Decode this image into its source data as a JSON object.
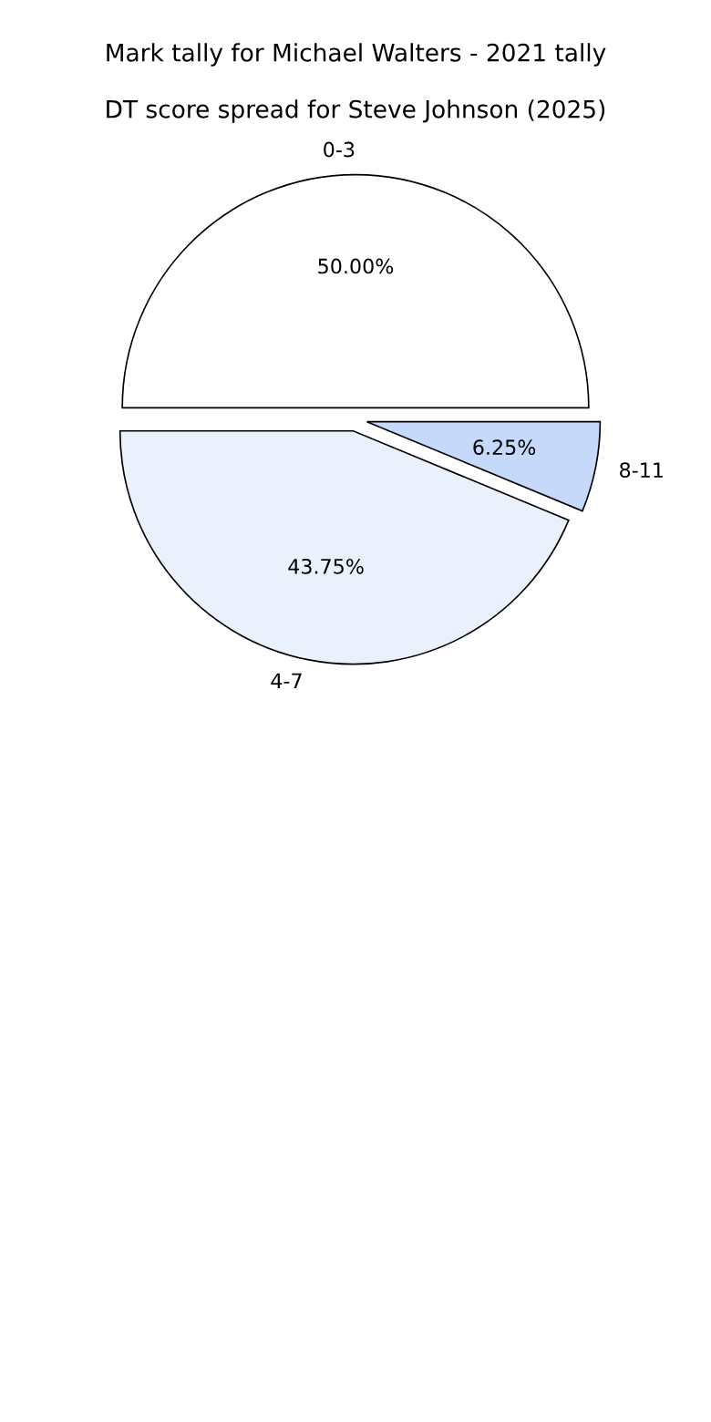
{
  "chart_data": {
    "type": "pie",
    "title": "Mark tally for Michael Walters - 2021 tally",
    "subtitle": "DT score spread for Steve Johnson (2025)",
    "categories": [
      "0-3",
      "4-7",
      "8-11"
    ],
    "values": [
      50,
      43.75,
      6.25
    ],
    "value_labels": [
      "50.00%",
      "43.75%",
      "6.25%"
    ],
    "colors": [
      "#ffffff",
      "#eaf1fd",
      "#c6d9fb"
    ]
  }
}
